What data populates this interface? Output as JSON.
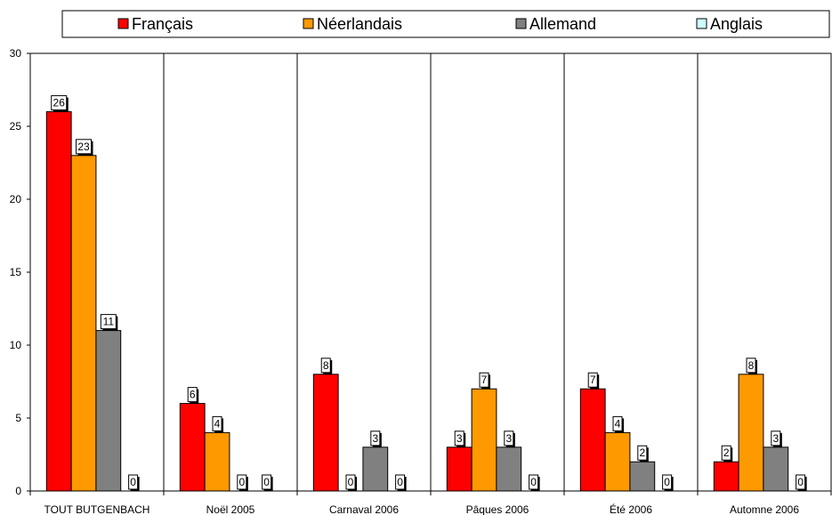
{
  "chart_data": {
    "type": "bar",
    "categories": [
      "TOUT BUTGENBACH",
      "Noël 2005",
      "Carnaval 2006",
      "Pâques 2006",
      "Été 2006",
      "Automne 2006"
    ],
    "series": [
      {
        "name": "Français",
        "color": "#ff0000",
        "values": [
          26,
          6,
          8,
          3,
          7,
          2
        ]
      },
      {
        "name": "Néerlandais",
        "color": "#ff9900",
        "values": [
          23,
          4,
          0,
          7,
          4,
          8
        ]
      },
      {
        "name": "Allemand",
        "color": "#808080",
        "values": [
          11,
          0,
          3,
          3,
          2,
          3
        ]
      },
      {
        "name": "Anglais",
        "color": "#ccffff",
        "values": [
          0,
          0,
          0,
          0,
          0,
          0
        ]
      }
    ],
    "ylim": [
      0,
      30
    ],
    "yticks": [
      "0",
      "5",
      "10",
      "15",
      "20",
      "25",
      "30"
    ],
    "grid": "vertical category separators",
    "legend_position": "top",
    "data_labels": true
  }
}
